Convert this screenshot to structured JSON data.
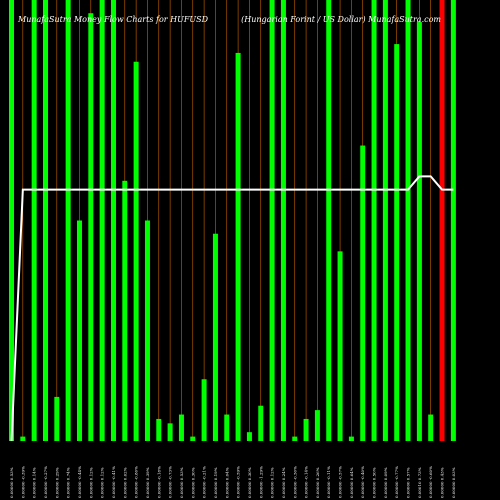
{
  "chart_data": {
    "type": "bar",
    "title_left": "MunafaSutra Money Flow Charts for HUFUSD",
    "title_right": "(Hungarian Forint / US Dollar) MunafaSutra.com",
    "colors": {
      "background": "#000000",
      "up": "#00ff00",
      "down": "#ff0000",
      "neutral_line": "#cc6600",
      "mfi_line": "#ffffff",
      "text": "#ffffff"
    },
    "ylim": [
      0,
      100
    ],
    "bars": [
      {
        "label": "0.00000 0.53%",
        "value": 100,
        "color": "up"
      },
      {
        "label": "0.00000 -0.39%",
        "value": 1,
        "color": "up"
      },
      {
        "label": "0.00000 0.14%",
        "value": 100,
        "color": "up"
      },
      {
        "label": "0.00000 -0.27%",
        "value": 100,
        "color": "up"
      },
      {
        "label": "0.00000 0.29%",
        "value": 10,
        "color": "up"
      },
      {
        "label": "0.00000 0.74%",
        "value": 100,
        "color": "up"
      },
      {
        "label": "0.00000 -0.44%",
        "value": 50,
        "color": "up"
      },
      {
        "label": "0.00000 0.12%",
        "value": 97,
        "color": "up"
      },
      {
        "label": "0.00000 0.12%",
        "value": 100,
        "color": "up"
      },
      {
        "label": "0.00000 -0.41%",
        "value": 100,
        "color": "up"
      },
      {
        "label": "0.00000 0.62%",
        "value": 59,
        "color": "up"
      },
      {
        "label": "0.00000 -0.86%",
        "value": 86,
        "color": "up"
      },
      {
        "label": "0.00000 0.39%",
        "value": 50,
        "color": "up"
      },
      {
        "label": "0.00000 -0.18%",
        "value": 5,
        "color": "up"
      },
      {
        "label": "0.00000 -0.73%",
        "value": 4,
        "color": "up"
      },
      {
        "label": "0.00000 0.53%",
        "value": 6,
        "color": "up"
      },
      {
        "label": "0.00000 0.30%",
        "value": 1,
        "color": "up"
      },
      {
        "label": "0.00000 -0.21%",
        "value": 14,
        "color": "up"
      },
      {
        "label": "0.00000 0.19%",
        "value": 47,
        "color": "up"
      },
      {
        "label": "0.00000 0.04%",
        "value": 6,
        "color": "up"
      },
      {
        "label": "0.00000 -0.59%",
        "value": 88,
        "color": "up"
      },
      {
        "label": "0.00000 0.30%",
        "value": 2,
        "color": "up"
      },
      {
        "label": "0.00000 -1.29%",
        "value": 8,
        "color": "up"
      },
      {
        "label": "0.00000 0.12%",
        "value": 100,
        "color": "up"
      },
      {
        "label": "0.00000 0.24%",
        "value": 100,
        "color": "up"
      },
      {
        "label": "0.00000 -0.50%",
        "value": 1,
        "color": "up"
      },
      {
        "label": "0.00000 -0.14%",
        "value": 5,
        "color": "up"
      },
      {
        "label": "0.00000 0.26%",
        "value": 7,
        "color": "up"
      },
      {
        "label": "0.00000 -0.11%",
        "value": 100,
        "color": "up"
      },
      {
        "label": "0.00000 -0.57%",
        "value": 43,
        "color": "up"
      },
      {
        "label": "0.00000 0.64%",
        "value": 1,
        "color": "up"
      },
      {
        "label": "0.00000 -0.40%",
        "value": 67,
        "color": "up"
      },
      {
        "label": "0.00000 0.50%",
        "value": 100,
        "color": "up"
      },
      {
        "label": "0.00000 0.09%",
        "value": 100,
        "color": "up"
      },
      {
        "label": "0.00000 -0.77%",
        "value": 90,
        "color": "up"
      },
      {
        "label": "0.00000 0.57%",
        "value": 100,
        "color": "up"
      },
      {
        "label": "0.00010 0.73%",
        "value": 95,
        "color": "up"
      },
      {
        "label": "0.00000 -0.60%",
        "value": 6,
        "color": "up"
      },
      {
        "label": "0.00000 0.43%",
        "value": 100,
        "color": "down"
      },
      {
        "label": "0.00000 0.03%",
        "value": 100,
        "color": "up"
      }
    ],
    "mfi_line": [
      0,
      57,
      57,
      57,
      57,
      57,
      57,
      57,
      57,
      57,
      57,
      57,
      57,
      57,
      57,
      57,
      57,
      57,
      57,
      57,
      57,
      57,
      57,
      57,
      57,
      57,
      57,
      57,
      57,
      57,
      57,
      57,
      57,
      57,
      57,
      57,
      60,
      60,
      57,
      57
    ]
  }
}
